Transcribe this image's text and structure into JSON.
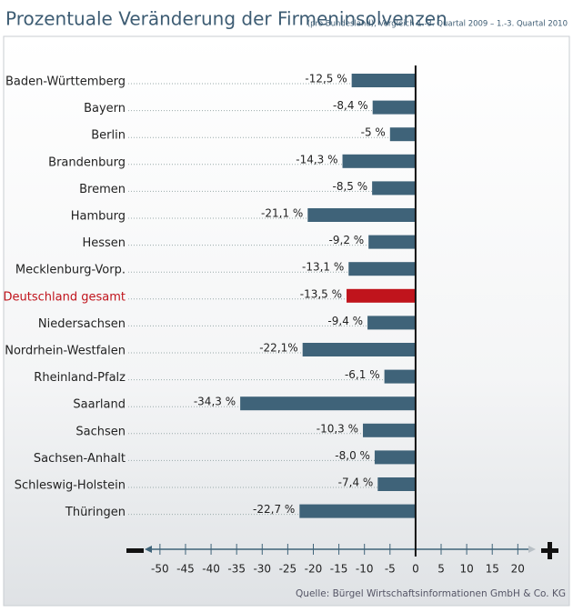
{
  "chart_data": {
    "type": "hbar",
    "title": "Prozentuale Veränderung der Firmeninsolvenzen",
    "subtitle": "(pro Bundesland), Vergleich 1.-3. Quartal 2009 – 1.-3. Quartal 2010",
    "source": "Quelle: Bürgel Wirtschaftsinformationen GmbH & Co. KG",
    "categories": [
      "Baden-Württemberg",
      "Bayern",
      "Berlin",
      "Brandenburg",
      "Bremen",
      "Hamburg",
      "Hessen",
      "Mecklenburg-Vorp.",
      "Deutschland gesamt",
      "Niedersachsen",
      "Nordrhein-Westfalen",
      "Rheinland-Pfalz",
      "Saarland",
      "Sachsen",
      "Sachsen-Anhalt",
      "Schleswig-Holstein",
      "Thüringen"
    ],
    "values": [
      -12.5,
      -8.4,
      -5,
      -14.3,
      -8.5,
      -21.1,
      -9.2,
      -13.1,
      -13.5,
      -9.4,
      -22.1,
      -6.1,
      -34.3,
      -10.3,
      -8.0,
      -7.4,
      -22.7
    ],
    "value_labels": [
      "-12,5 %",
      "-8,4 %",
      "-5 %",
      "-14,3 %",
      "-8,5 %",
      "-21,1 %",
      "-9,2 %",
      "-13,1 %",
      "-13,5 %",
      "-9,4 %",
      "-22,1%",
      "-6,1 %",
      "-34,3 %",
      "-10,3 %",
      "-8,0 %",
      "-7,4 %",
      "-22,7 %"
    ],
    "colors": [
      "#3f6379",
      "#3f6379",
      "#3f6379",
      "#3f6379",
      "#3f6379",
      "#3f6379",
      "#3f6379",
      "#3f6379",
      "#c0141c",
      "#3f6379",
      "#3f6379",
      "#3f6379",
      "#3f6379",
      "#3f6379",
      "#3f6379",
      "#3f6379",
      "#3f6379"
    ],
    "label_colors": [
      "#222222",
      "#222222",
      "#222222",
      "#222222",
      "#222222",
      "#222222",
      "#222222",
      "#222222",
      "#c0141c",
      "#222222",
      "#222222",
      "#222222",
      "#222222",
      "#222222",
      "#222222",
      "#222222",
      "#222222"
    ],
    "xlim": [
      -53,
      23.5
    ],
    "xticks": [
      -50,
      -45,
      -40,
      -35,
      -30,
      -25,
      -20,
      -15,
      -10,
      -5,
      0,
      5,
      10,
      15,
      20
    ]
  }
}
